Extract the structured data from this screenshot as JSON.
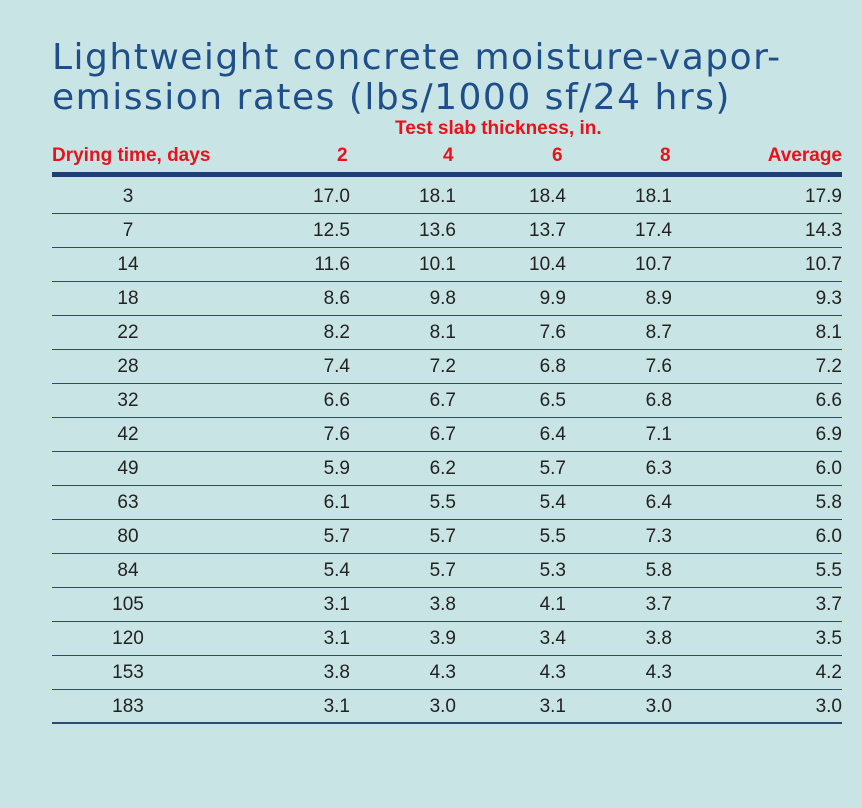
{
  "title": {
    "line1": "Lightweight concrete moisture-vapor-",
    "line2": "emission rates (lbs/1000 sf/24 hrs)"
  },
  "table": {
    "group_header": "Test slab thickness, in.",
    "columns": [
      "Drying time, days",
      "2",
      "4",
      "6",
      "8",
      "Average"
    ],
    "rows": [
      [
        "3",
        "17.0",
        "18.1",
        "18.4",
        "18.1",
        "17.9"
      ],
      [
        "7",
        "12.5",
        "13.6",
        "13.7",
        "17.4",
        "14.3"
      ],
      [
        "14",
        "11.6",
        "10.1",
        "10.4",
        "10.7",
        "10.7"
      ],
      [
        "18",
        "8.6",
        "9.8",
        "9.9",
        "8.9",
        "9.3"
      ],
      [
        "22",
        "8.2",
        "8.1",
        "7.6",
        "8.7",
        "8.1"
      ],
      [
        "28",
        "7.4",
        "7.2",
        "6.8",
        "7.6",
        "7.2"
      ],
      [
        "32",
        "6.6",
        "6.7",
        "6.5",
        "6.8",
        "6.6"
      ],
      [
        "42",
        "7.6",
        "6.7",
        "6.4",
        "7.1",
        "6.9"
      ],
      [
        "49",
        "5.9",
        "6.2",
        "5.7",
        "6.3",
        "6.0"
      ],
      [
        "63",
        "6.1",
        "5.5",
        "5.4",
        "6.4",
        "5.8"
      ],
      [
        "80",
        "5.7",
        "5.7",
        "5.5",
        "7.3",
        "6.0"
      ],
      [
        "84",
        "5.4",
        "5.7",
        "5.3",
        "5.8",
        "5.5"
      ],
      [
        "105",
        "3.1",
        "3.8",
        "4.1",
        "3.7",
        "3.7"
      ],
      [
        "120",
        "3.1",
        "3.9",
        "3.4",
        "3.8",
        "3.5"
      ],
      [
        "153",
        "3.8",
        "4.3",
        "4.3",
        "4.3",
        "4.2"
      ],
      [
        "183",
        "3.1",
        "3.0",
        "3.1",
        "3.0",
        "3.0"
      ]
    ]
  },
  "colors": {
    "background": "#c9e4e4",
    "title": "#1f4f8a",
    "header": "#e8121c",
    "rule": "#1f3f72"
  }
}
